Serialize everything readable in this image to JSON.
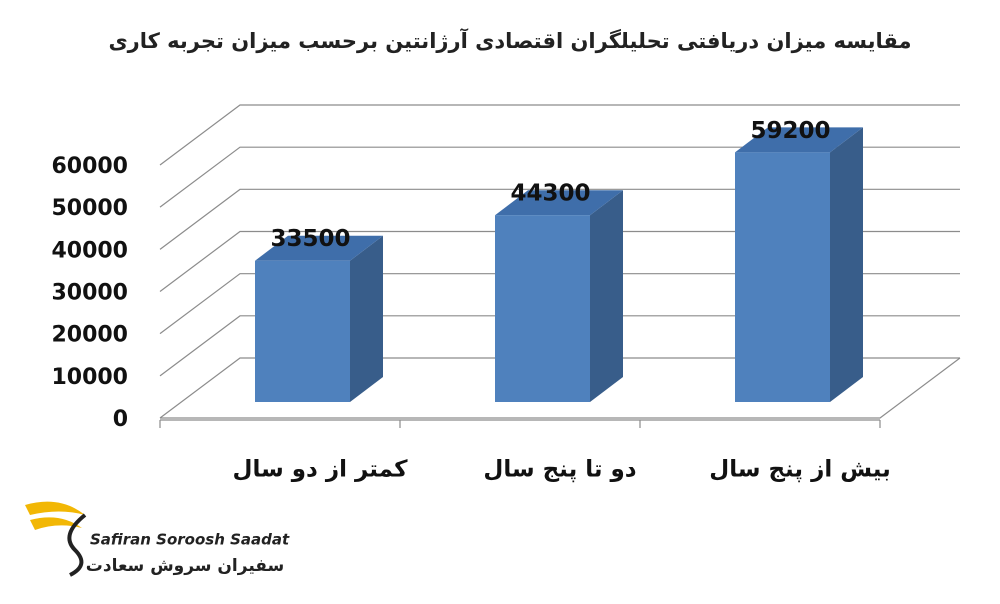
{
  "chart_data": {
    "type": "bar3d",
    "title": "مقایسه میزان دریافتی تحلیلگران اقتصادی آرژانتین برحسب میزان تجربه کاری",
    "categories": [
      "کمتر از دو سال",
      "دو تا پنج سال",
      "بیش از پنج سال"
    ],
    "values": [
      33500,
      44300,
      59200
    ],
    "color": "#4f81bd",
    "ylim": [
      0,
      60000
    ],
    "yticks": [
      0,
      10000,
      20000,
      30000,
      40000,
      50000,
      60000
    ],
    "grid": true
  },
  "logo": {
    "name_en": "Safiran Soroosh Saadat",
    "name_fa": "سفیران سروش سعادت"
  }
}
